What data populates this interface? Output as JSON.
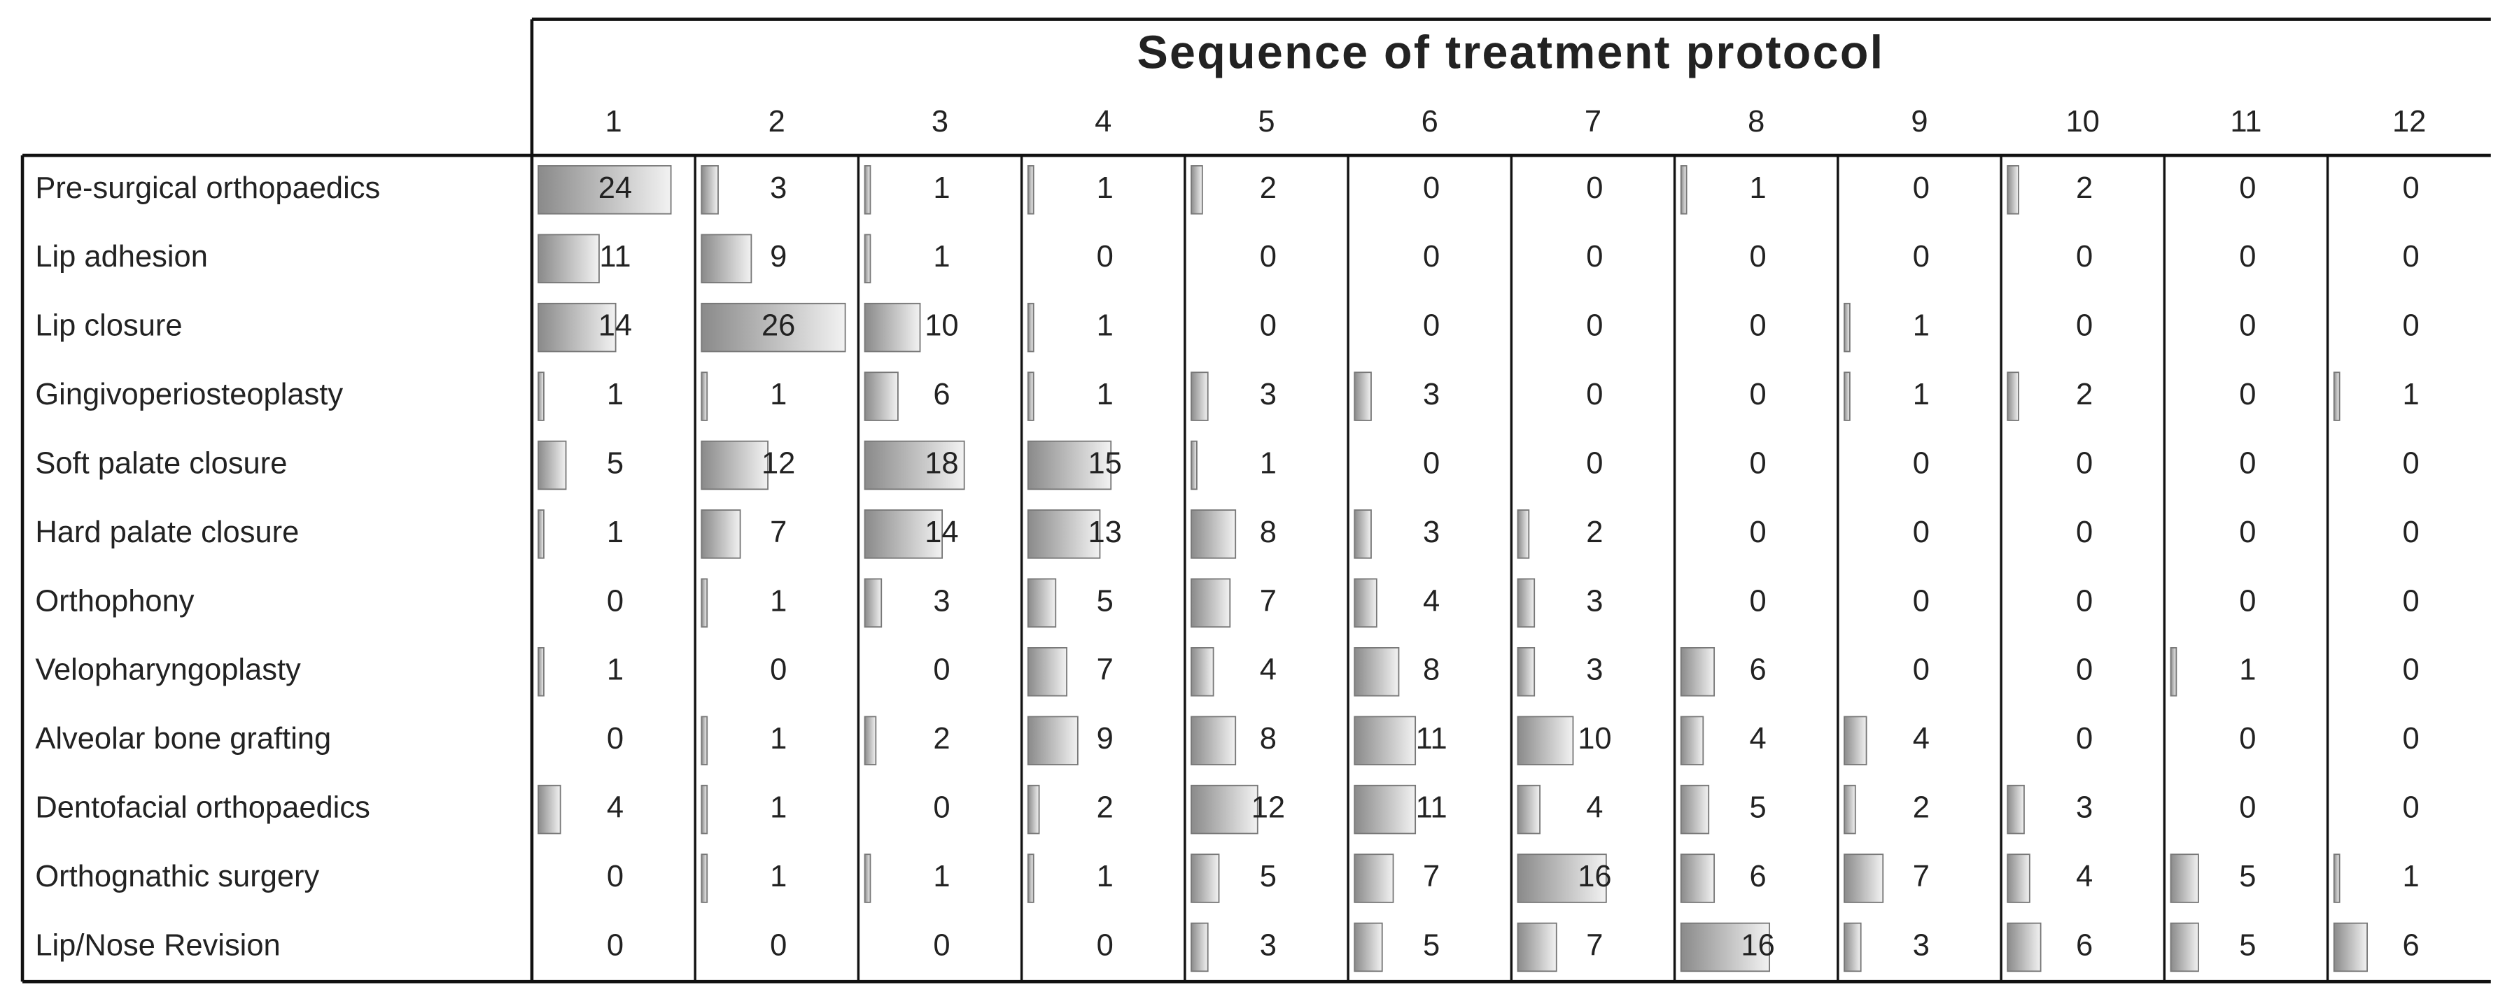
{
  "title": "Sequence of treatment protocol",
  "columns": [
    1,
    2,
    3,
    4,
    5,
    6,
    7,
    8,
    9,
    10,
    11,
    12
  ],
  "rows": [
    {
      "label": "Pre-surgical orthopaedics",
      "values": [
        24,
        3,
        1,
        1,
        2,
        0,
        0,
        1,
        0,
        2,
        0,
        0
      ]
    },
    {
      "label": "Lip adhesion",
      "values": [
        11,
        9,
        1,
        0,
        0,
        0,
        0,
        0,
        0,
        0,
        0,
        0
      ]
    },
    {
      "label": "Lip closure",
      "values": [
        14,
        26,
        10,
        1,
        0,
        0,
        0,
        0,
        1,
        0,
        0,
        0
      ]
    },
    {
      "label": "Gingivoperiosteoplasty",
      "values": [
        1,
        1,
        6,
        1,
        3,
        3,
        0,
        0,
        1,
        2,
        0,
        1
      ]
    },
    {
      "label": "Soft palate closure",
      "values": [
        5,
        12,
        18,
        15,
        1,
        0,
        0,
        0,
        0,
        0,
        0,
        0
      ]
    },
    {
      "label": "Hard palate closure",
      "values": [
        1,
        7,
        14,
        13,
        8,
        3,
        2,
        0,
        0,
        0,
        0,
        0
      ]
    },
    {
      "label": "Orthophony",
      "values": [
        0,
        1,
        3,
        5,
        7,
        4,
        3,
        0,
        0,
        0,
        0,
        0
      ]
    },
    {
      "label": "Velopharyngoplasty",
      "values": [
        1,
        0,
        0,
        7,
        4,
        8,
        3,
        6,
        0,
        0,
        1,
        0
      ]
    },
    {
      "label": "Alveolar bone grafting",
      "values": [
        0,
        1,
        2,
        9,
        8,
        11,
        10,
        4,
        4,
        0,
        0,
        0
      ]
    },
    {
      "label": "Dentofacial orthopaedics",
      "values": [
        4,
        1,
        0,
        2,
        12,
        11,
        4,
        5,
        2,
        3,
        0,
        0
      ]
    },
    {
      "label": "Orthognathic surgery",
      "values": [
        0,
        1,
        1,
        1,
        5,
        7,
        16,
        6,
        7,
        4,
        5,
        1
      ]
    },
    {
      "label": "Lip/Nose Revision",
      "values": [
        0,
        0,
        0,
        0,
        3,
        5,
        7,
        16,
        3,
        6,
        5,
        6
      ]
    }
  ]
}
